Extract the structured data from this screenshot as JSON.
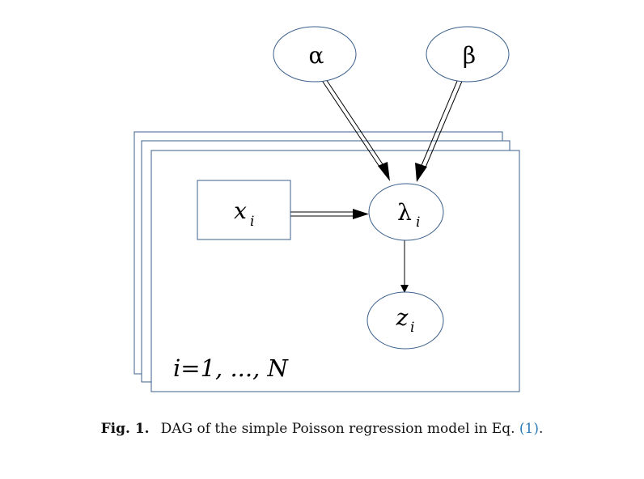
{
  "diagram": {
    "nodes": {
      "alpha": {
        "label": "α"
      },
      "beta": {
        "label": "β"
      },
      "lambda": {
        "label": "λ",
        "sub": "i"
      },
      "x": {
        "label": "x",
        "sub": "i"
      },
      "z": {
        "label": "z",
        "sub": "i"
      }
    },
    "plate_label": "i=1, ..., N",
    "colors": {
      "stroke": "#3a5f8a",
      "arrow": "#000000"
    }
  },
  "caption": {
    "fig_label": "Fig. 1.",
    "text": "DAG of the simple Poisson regression model in Eq. ",
    "ref": "(1)",
    "end": ".",
    "ref_color": "#2b7bb9"
  }
}
